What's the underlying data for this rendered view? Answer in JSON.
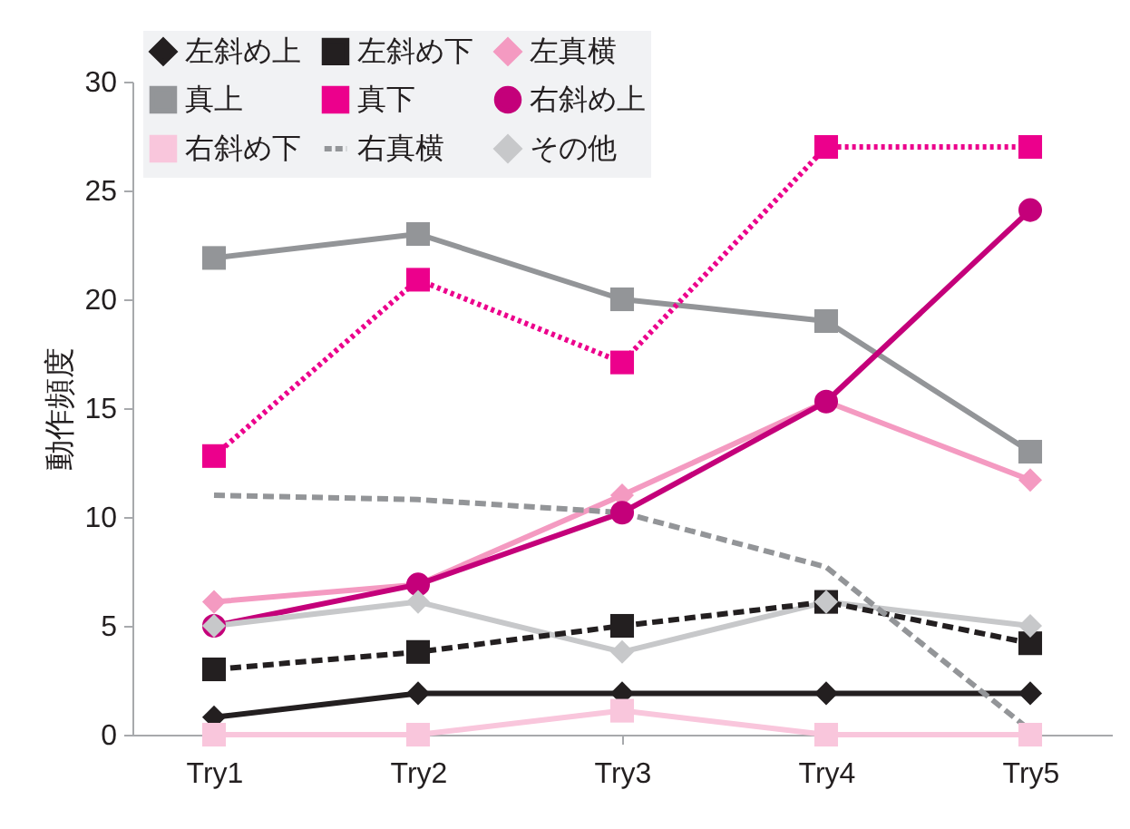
{
  "chart_data": {
    "type": "line",
    "ylabel": "動作頻度",
    "categories": [
      "Try1",
      "Try2",
      "Try3",
      "Try4",
      "Try5"
    ],
    "ylim": [
      0,
      30
    ],
    "yticks": [
      0,
      5,
      10,
      15,
      20,
      25,
      30
    ],
    "grid": false,
    "legend": "top left",
    "series": [
      {
        "name": "左斜め上",
        "color": "#231f20",
        "marker": "diamond",
        "line_style": "solid",
        "values": [
          0.8,
          1.9,
          1.9,
          1.9,
          1.9
        ]
      },
      {
        "name": "左斜め下",
        "color": "#231f20",
        "marker": "square",
        "line_style": "dashed",
        "values": [
          3.0,
          3.8,
          5.0,
          6.1,
          4.2
        ]
      },
      {
        "name": "左真横",
        "color": "#f49ac1",
        "marker": "diamond",
        "line_style": "solid",
        "values": [
          6.1,
          6.9,
          11.0,
          15.3,
          11.7
        ]
      },
      {
        "name": "真上",
        "color": "#939598",
        "marker": "square",
        "line_style": "solid",
        "values": [
          21.9,
          23.0,
          20.0,
          19.0,
          13.0
        ]
      },
      {
        "name": "真下",
        "color": "#ec008c",
        "marker": "square",
        "line_style": "dotted",
        "values": [
          12.8,
          20.9,
          17.1,
          27.0,
          27.0
        ]
      },
      {
        "name": "右斜め上",
        "color": "#c4007a",
        "marker": "circle",
        "line_style": "solid",
        "values": [
          5.0,
          6.9,
          10.2,
          15.3,
          24.1
        ]
      },
      {
        "name": "右斜め下",
        "color": "#f9c6dc",
        "marker": "square",
        "line_style": "solid",
        "values": [
          0,
          0,
          1.1,
          0,
          0
        ]
      },
      {
        "name": "右真横",
        "color": "#939598",
        "marker": "none",
        "line_style": "dashed",
        "values": [
          11.0,
          10.8,
          10.2,
          7.7,
          0.2
        ]
      },
      {
        "name": "その他",
        "color": "#c7c8ca",
        "marker": "diamond",
        "line_style": "solid",
        "values": [
          5.0,
          6.1,
          3.8,
          6.1,
          5.0
        ]
      }
    ]
  }
}
